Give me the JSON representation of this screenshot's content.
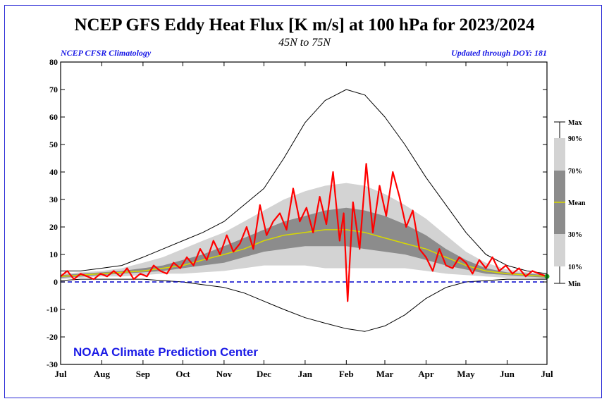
{
  "title": "NCEP GFS Eddy Heat Flux [K m/s] at 100 hPa for 2023/2024",
  "subtitle": "45N to 75N",
  "source_left": "NCEP CFSR Climatology",
  "source_right": "Updated through DOY: 181",
  "credit": "NOAA Climate Prediction Center",
  "colors": {
    "frame": "#2b2bd6",
    "observed": "#ff0000",
    "mean": "#d8d800",
    "band_outer": "#d3d3d3",
    "band_inner": "#8c8c8c",
    "extremes": "#000000",
    "zero_line": "#0000cc",
    "latest_marker": "#22aa22"
  },
  "chart_data": {
    "type": "line",
    "xlabel": "",
    "ylabel": "",
    "ylim": [
      -30,
      80
    ],
    "yticks": [
      -30,
      -20,
      -10,
      0,
      10,
      20,
      30,
      40,
      50,
      60,
      70,
      80
    ],
    "xlim": [
      0,
      366
    ],
    "month_ticks": [
      {
        "label": "Jul",
        "day": 0
      },
      {
        "label": "Aug",
        "day": 31
      },
      {
        "label": "Sep",
        "day": 62
      },
      {
        "label": "Oct",
        "day": 92
      },
      {
        "label": "Nov",
        "day": 123
      },
      {
        "label": "Dec",
        "day": 153
      },
      {
        "label": "Jan",
        "day": 184
      },
      {
        "label": "Feb",
        "day": 215
      },
      {
        "label": "Mar",
        "day": 244
      },
      {
        "label": "Apr",
        "day": 275
      },
      {
        "label": "May",
        "day": 305
      },
      {
        "label": "Jun",
        "day": 336
      },
      {
        "label": "Jul",
        "day": 366
      }
    ],
    "legend": {
      "position": "right",
      "labels": [
        "Max",
        "90%",
        "70%",
        "Mean",
        "30%",
        "10%",
        "Min"
      ]
    },
    "climatology": {
      "x": [
        0,
        15,
        31,
        46,
        62,
        77,
        92,
        107,
        123,
        138,
        153,
        168,
        184,
        199,
        215,
        229,
        244,
        259,
        275,
        290,
        305,
        320,
        336,
        351,
        366
      ],
      "max": [
        4,
        4,
        5,
        6,
        9,
        12,
        15,
        18,
        22,
        28,
        34,
        45,
        58,
        66,
        70,
        68,
        60,
        50,
        38,
        28,
        18,
        10,
        6,
        4,
        3
      ],
      "p90": [
        3,
        3.5,
        4,
        5,
        7,
        9,
        12,
        15,
        18,
        22,
        26,
        30,
        33,
        35,
        36,
        35,
        32,
        28,
        23,
        17,
        11,
        7,
        4.5,
        3.5,
        3
      ],
      "p70": [
        2.5,
        3,
        3.5,
        4,
        5,
        6,
        8,
        10,
        13,
        16,
        19,
        22,
        24,
        26,
        27,
        26,
        24,
        21,
        17,
        12,
        8,
        5,
        3.5,
        3,
        2.5
      ],
      "mean": [
        2,
        2.5,
        3,
        3.5,
        4,
        5,
        6,
        8,
        10,
        12,
        15,
        17,
        18,
        19,
        19,
        18,
        16,
        14,
        12,
        9,
        6,
        4,
        3,
        2.5,
        2
      ],
      "p30": [
        1.5,
        2,
        2.5,
        3,
        3.5,
        4,
        5,
        6,
        7,
        9,
        11,
        12,
        13,
        13,
        13,
        12,
        11,
        10,
        8,
        6,
        4.5,
        3,
        2.5,
        2,
        1.5
      ],
      "p10": [
        1,
        1.5,
        2,
        2,
        2.5,
        3,
        3,
        3.5,
        4,
        5,
        6,
        6,
        6,
        5,
        5,
        5,
        5,
        5,
        4,
        3,
        2.5,
        2,
        1.5,
        1.5,
        1
      ],
      "min": [
        0.5,
        1,
        1,
        1,
        1,
        0.5,
        0,
        -1,
        -2,
        -4,
        -7,
        -10,
        -13,
        -15,
        -17,
        -18,
        -16,
        -12,
        -6,
        -2,
        0,
        0.5,
        1,
        1,
        1
      ]
    },
    "observed_2023_2024": {
      "name": "2023/2024",
      "x": [
        0,
        5,
        10,
        15,
        20,
        25,
        30,
        35,
        40,
        45,
        50,
        55,
        60,
        65,
        70,
        75,
        80,
        85,
        90,
        95,
        100,
        105,
        110,
        115,
        120,
        125,
        130,
        135,
        140,
        145,
        150,
        155,
        160,
        165,
        170,
        175,
        180,
        185,
        190,
        195,
        200,
        205,
        210,
        213,
        216,
        220,
        225,
        230,
        235,
        240,
        245,
        250,
        255,
        260,
        265,
        270,
        275,
        280,
        285,
        290,
        295,
        300,
        305,
        310,
        315,
        320,
        325,
        330,
        335,
        340,
        345,
        350,
        355,
        360,
        366
      ],
      "y": [
        2,
        4,
        1,
        3,
        2,
        1,
        3,
        2,
        4,
        2,
        5,
        1,
        3,
        2,
        6,
        4,
        3,
        7,
        5,
        9,
        6,
        12,
        8,
        15,
        10,
        17,
        11,
        14,
        20,
        12,
        28,
        17,
        22,
        25,
        19,
        34,
        22,
        27,
        18,
        31,
        21,
        40,
        15,
        25,
        -7,
        29,
        12,
        43,
        18,
        35,
        24,
        40,
        31,
        20,
        26,
        12,
        9,
        4,
        12,
        6,
        5,
        9,
        7,
        3,
        8,
        5,
        9,
        4,
        6,
        3,
        5,
        2,
        4,
        3,
        2
      ]
    }
  }
}
